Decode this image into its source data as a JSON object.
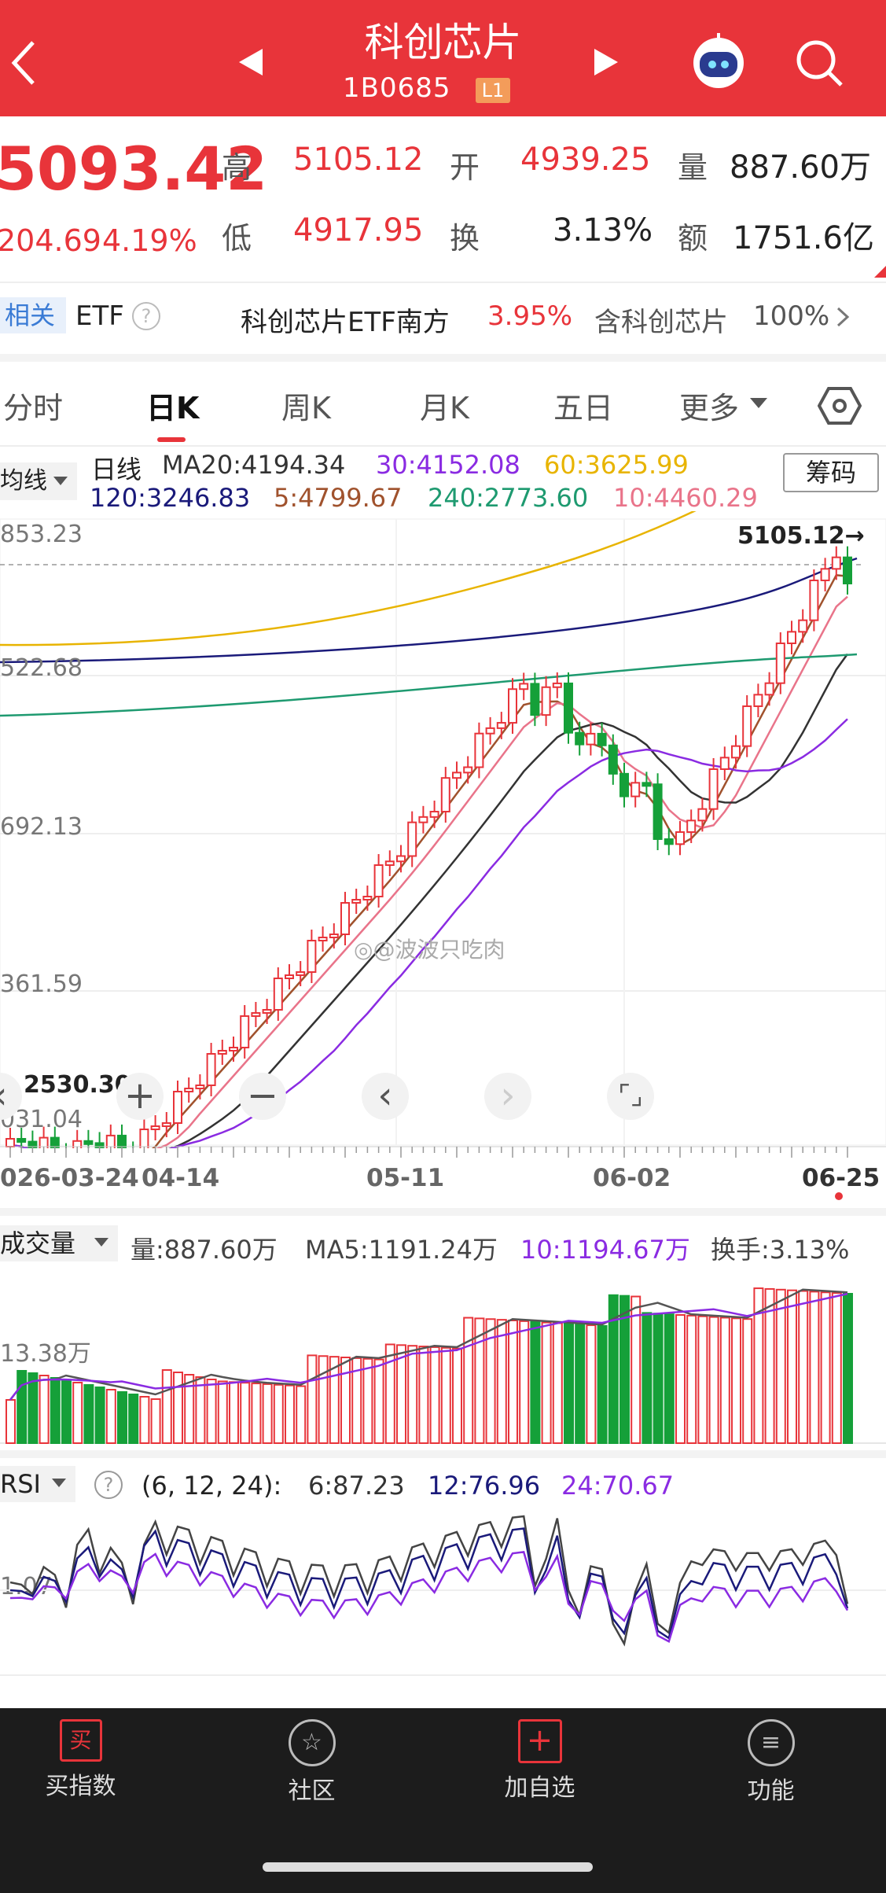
{
  "header": {
    "title": "科创芯片",
    "code": "1B0685",
    "level": "L1"
  },
  "quote": {
    "price": "5093.42",
    "change": "204.69",
    "change_pct": "4.19%",
    "high_label": "高",
    "high": "5105.12",
    "open_label": "开",
    "open": "4939.25",
    "vol_label": "量",
    "vol": "887.60万",
    "low_label": "低",
    "low": "4917.95",
    "turn_label": "换",
    "turn": "3.13%",
    "amt_label": "额",
    "amt": "1751.6亿"
  },
  "related": {
    "tag": "相关",
    "etf": "ETF",
    "fund": "科创芯片ETF南方",
    "fund_pct": "3.95%",
    "hold": "含科创芯片",
    "hold_pct": "100%"
  },
  "tabs": [
    "分时",
    "日K",
    "周K",
    "月K",
    "五日",
    "更多"
  ],
  "legend": {
    "ma_toggle": "均线",
    "period": "日线",
    "ma20": "MA20:4194.34",
    "ma30": "30:4152.08",
    "ma60": "60:3625.99",
    "ma120": "120:3246.83",
    "ma5": "5:4799.67",
    "ma240": "240:2773.60",
    "ma10": "10:4460.29",
    "chip_button": "筹码"
  },
  "axis": {
    "y1": "853.23",
    "y2": "522.68",
    "y3": "692.13",
    "y4": "361.59",
    "y5": "031.04",
    "low_marker": "2530.30",
    "high_marker": "5105.12→",
    "x1": "026-03-24",
    "x2": "04-14",
    "x3": "05-11",
    "x4": "06-02",
    "x5": "06-25"
  },
  "volume": {
    "toggle": "成交量",
    "vol": "量:887.60万",
    "ma5": "MA5:1191.24万",
    "ma10": "10:1194.67万",
    "turnover": "换手:3.13%",
    "ylabel": "13.38万"
  },
  "rsi": {
    "toggle": "RSI",
    "params": "(6, 12, 24):",
    "r6": "6:87.23",
    "r12": "12:76.96",
    "r24": "24:70.67",
    "ylabel": "1.07"
  },
  "watermark": "@波波只吃肉",
  "bottom": [
    {
      "label": "买指数"
    },
    {
      "label": "社区"
    },
    {
      "label": "加自选"
    },
    {
      "label": "功能"
    }
  ],
  "colors": {
    "up": "#e8343a",
    "down": "#15a039",
    "ma5": "#a0522d",
    "ma10": "#e9748a",
    "ma20": "#333333",
    "ma30": "#8a2be2",
    "ma60": "#e8b400",
    "ma120": "#1a1a7a",
    "ma240": "#1e9a70"
  }
}
